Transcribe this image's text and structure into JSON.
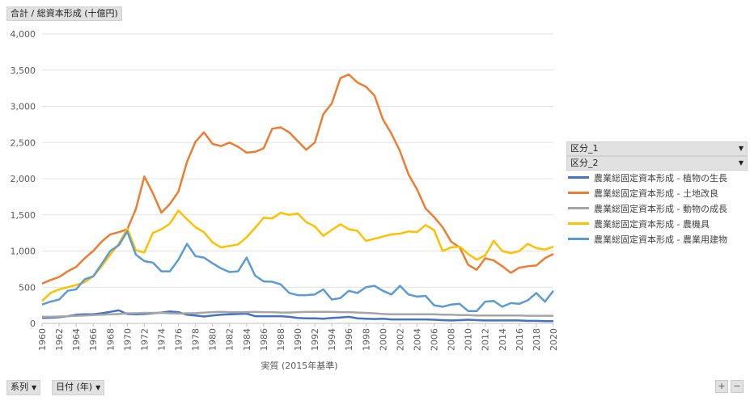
{
  "measure_button": "合計 / 総資本形成 (十億円)",
  "series_button": "系列",
  "date_button": "日付 (年)",
  "filters": [
    "区分_1",
    "区分_2"
  ],
  "expand": {
    "plus": "+",
    "minus": "−"
  },
  "chart_data": {
    "type": "line",
    "title": "",
    "xlabel": "実質 (2015年基準)",
    "ylabel": "",
    "ylim": [
      0,
      4000
    ],
    "yticks": [
      0,
      500,
      1000,
      1500,
      2000,
      2500,
      3000,
      3500,
      4000
    ],
    "ytick_labels": [
      "0",
      "500",
      "1,000",
      "1,500",
      "2,000",
      "2,500",
      "3,000",
      "3,500",
      "4,000"
    ],
    "xlim": [
      1960,
      2020
    ],
    "xticks": [
      1960,
      1962,
      1964,
      1966,
      1968,
      1970,
      1972,
      1974,
      1976,
      1978,
      1980,
      1982,
      1984,
      1986,
      1988,
      1990,
      1992,
      1994,
      1996,
      1998,
      2000,
      2002,
      2004,
      2006,
      2008,
      2010,
      2012,
      2014,
      2016,
      2018,
      2020
    ],
    "grid": true,
    "legend_position": "right",
    "x": [
      1960,
      1961,
      1962,
      1963,
      1964,
      1965,
      1966,
      1967,
      1968,
      1969,
      1970,
      1971,
      1972,
      1973,
      1974,
      1975,
      1976,
      1977,
      1978,
      1979,
      1980,
      1981,
      1982,
      1983,
      1984,
      1985,
      1986,
      1987,
      1988,
      1989,
      1990,
      1991,
      1992,
      1993,
      1994,
      1995,
      1996,
      1997,
      1998,
      1999,
      2000,
      2001,
      2002,
      2003,
      2004,
      2005,
      2006,
      2007,
      2008,
      2009,
      2010,
      2011,
      2012,
      2013,
      2014,
      2015,
      2016,
      2017,
      2018,
      2019,
      2020
    ],
    "series": [
      {
        "name": "農業総固定資本形成 - 植物の生長",
        "color": "#4472c4",
        "values": [
          75,
          78,
          85,
          100,
          120,
          125,
          125,
          140,
          160,
          180,
          130,
          125,
          130,
          140,
          150,
          165,
          155,
          120,
          110,
          95,
          110,
          120,
          125,
          130,
          135,
          100,
          100,
          100,
          100,
          90,
          75,
          70,
          70,
          65,
          75,
          80,
          90,
          70,
          65,
          60,
          65,
          55,
          55,
          55,
          55,
          55,
          50,
          45,
          40,
          45,
          50,
          45,
          40,
          40,
          40,
          40,
          40,
          35,
          35,
          30,
          30
        ]
      },
      {
        "name": "農業総固定資本形成 - 土地改良",
        "color": "#ed7d31",
        "values": [
          550,
          600,
          640,
          720,
          780,
          900,
          1000,
          1130,
          1230,
          1260,
          1300,
          1580,
          2030,
          1800,
          1530,
          1650,
          1820,
          2230,
          2510,
          2640,
          2480,
          2450,
          2500,
          2440,
          2360,
          2370,
          2420,
          2690,
          2710,
          2640,
          2520,
          2400,
          2500,
          2890,
          3040,
          3390,
          3440,
          3330,
          3270,
          3150,
          2820,
          2620,
          2380,
          2060,
          1850,
          1590,
          1470,
          1330,
          1130,
          1050,
          810,
          740,
          900,
          870,
          790,
          700,
          770,
          790,
          800,
          900,
          960
        ]
      },
      {
        "name": "農業総固定資本形成 - 動物の成長",
        "color": "#a5a5a5",
        "values": [
          90,
          90,
          95,
          100,
          105,
          110,
          115,
          120,
          125,
          130,
          140,
          140,
          145,
          145,
          145,
          140,
          135,
          140,
          140,
          150,
          155,
          160,
          155,
          155,
          155,
          160,
          155,
          155,
          150,
          150,
          155,
          160,
          160,
          160,
          160,
          155,
          155,
          150,
          145,
          140,
          130,
          125,
          125,
          125,
          125,
          125,
          125,
          120,
          120,
          115,
          115,
          110,
          110,
          110,
          110,
          110,
          110,
          105,
          105,
          105,
          105
        ]
      },
      {
        "name": "農業総固定資本形成 - 農機具",
        "color": "#ffc000",
        "values": [
          310,
          420,
          470,
          500,
          530,
          570,
          650,
          790,
          950,
          1100,
          1310,
          1010,
          980,
          1250,
          1300,
          1380,
          1560,
          1440,
          1330,
          1260,
          1120,
          1050,
          1070,
          1090,
          1190,
          1320,
          1460,
          1450,
          1530,
          1500,
          1520,
          1400,
          1340,
          1210,
          1290,
          1370,
          1300,
          1280,
          1140,
          1170,
          1200,
          1230,
          1240,
          1270,
          1260,
          1360,
          1290,
          1000,
          1050,
          1060,
          960,
          880,
          940,
          1140,
          1000,
          970,
          1000,
          1100,
          1040,
          1020,
          1060
        ]
      },
      {
        "name": "農業総固定資本形成 - 農業用建物",
        "color": "#5b9bd5",
        "values": [
          260,
          300,
          330,
          450,
          470,
          610,
          650,
          820,
          1000,
          1080,
          1270,
          950,
          860,
          840,
          720,
          720,
          880,
          1100,
          930,
          910,
          830,
          760,
          710,
          720,
          910,
          660,
          580,
          575,
          540,
          420,
          390,
          390,
          400,
          470,
          330,
          350,
          450,
          420,
          500,
          520,
          450,
          400,
          520,
          400,
          370,
          380,
          250,
          230,
          260,
          270,
          170,
          170,
          300,
          310,
          230,
          280,
          270,
          320,
          420,
          300,
          450
        ]
      }
    ]
  }
}
